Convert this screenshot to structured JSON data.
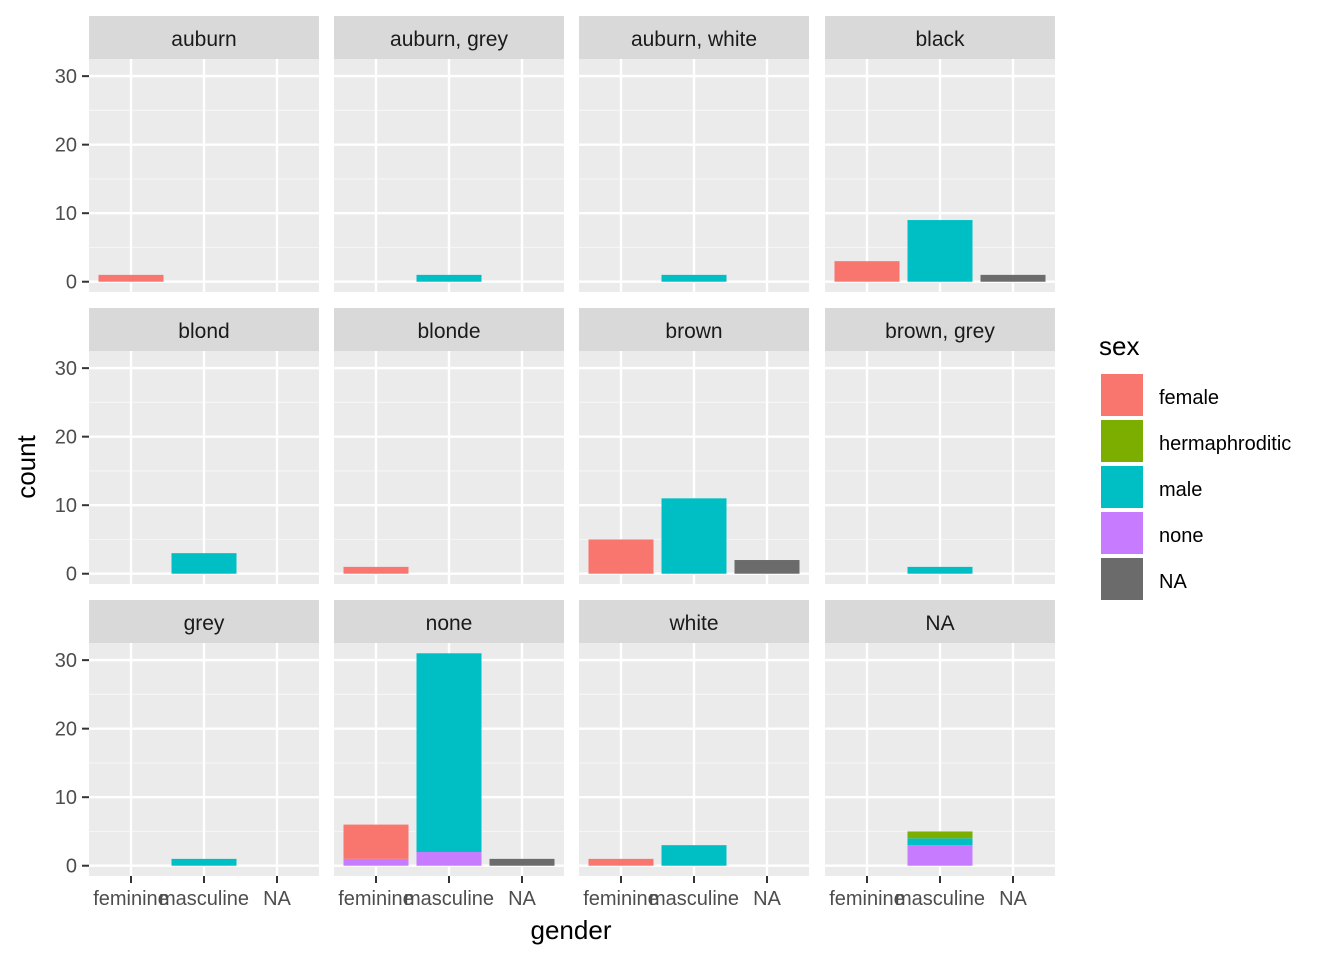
{
  "chart_data": {
    "type": "bar",
    "stacked": true,
    "xlabel": "gender",
    "ylabel": "count",
    "categories": [
      "feminine",
      "masculine",
      "NA"
    ],
    "y_ticks": [
      0,
      10,
      20,
      30
    ],
    "ylim": [
      -1.5,
      32.5
    ],
    "grid": true,
    "facet_layout": {
      "rows": 3,
      "cols": 4
    },
    "legend": {
      "title": "sex",
      "placement": "right",
      "items": [
        {
          "key": "female",
          "label": "female",
          "color": "#F8766D"
        },
        {
          "key": "hermaphroditic",
          "label": "hermaphroditic",
          "color": "#7CAE00"
        },
        {
          "key": "male",
          "label": "male",
          "color": "#00BFC4"
        },
        {
          "key": "none",
          "label": "none",
          "color": "#C77CFF"
        },
        {
          "key": "na",
          "label": "NA",
          "color": "#6B6B6B"
        }
      ]
    },
    "panels": [
      {
        "title": "auburn",
        "bars": [
          {
            "category": "feminine",
            "segments": [
              {
                "sex": "female",
                "value": 1
              }
            ]
          }
        ]
      },
      {
        "title": "auburn, grey",
        "bars": [
          {
            "category": "masculine",
            "segments": [
              {
                "sex": "male",
                "value": 1
              }
            ]
          }
        ]
      },
      {
        "title": "auburn, white",
        "bars": [
          {
            "category": "masculine",
            "segments": [
              {
                "sex": "male",
                "value": 1
              }
            ]
          }
        ]
      },
      {
        "title": "black",
        "bars": [
          {
            "category": "feminine",
            "segments": [
              {
                "sex": "female",
                "value": 3
              }
            ]
          },
          {
            "category": "masculine",
            "segments": [
              {
                "sex": "male",
                "value": 9
              }
            ]
          },
          {
            "category": "NA",
            "segments": [
              {
                "sex": "na",
                "value": 1
              }
            ]
          }
        ]
      },
      {
        "title": "blond",
        "bars": [
          {
            "category": "masculine",
            "segments": [
              {
                "sex": "male",
                "value": 3
              }
            ]
          }
        ]
      },
      {
        "title": "blonde",
        "bars": [
          {
            "category": "feminine",
            "segments": [
              {
                "sex": "female",
                "value": 1
              }
            ]
          }
        ]
      },
      {
        "title": "brown",
        "bars": [
          {
            "category": "feminine",
            "segments": [
              {
                "sex": "female",
                "value": 5
              }
            ]
          },
          {
            "category": "masculine",
            "segments": [
              {
                "sex": "male",
                "value": 11
              }
            ]
          },
          {
            "category": "NA",
            "segments": [
              {
                "sex": "na",
                "value": 2
              }
            ]
          }
        ]
      },
      {
        "title": "brown, grey",
        "bars": [
          {
            "category": "masculine",
            "segments": [
              {
                "sex": "male",
                "value": 1
              }
            ]
          }
        ]
      },
      {
        "title": "grey",
        "bars": [
          {
            "category": "masculine",
            "segments": [
              {
                "sex": "male",
                "value": 1
              }
            ]
          }
        ]
      },
      {
        "title": "none",
        "bars": [
          {
            "category": "feminine",
            "segments": [
              {
                "sex": "none",
                "value": 1
              },
              {
                "sex": "female",
                "value": 5
              }
            ]
          },
          {
            "category": "masculine",
            "segments": [
              {
                "sex": "none",
                "value": 2
              },
              {
                "sex": "male",
                "value": 29
              }
            ]
          },
          {
            "category": "NA",
            "segments": [
              {
                "sex": "na",
                "value": 1
              }
            ]
          }
        ]
      },
      {
        "title": "white",
        "bars": [
          {
            "category": "feminine",
            "segments": [
              {
                "sex": "female",
                "value": 1
              }
            ]
          },
          {
            "category": "masculine",
            "segments": [
              {
                "sex": "male",
                "value": 3
              }
            ]
          }
        ]
      },
      {
        "title": "NA",
        "bars": [
          {
            "category": "masculine",
            "segments": [
              {
                "sex": "none",
                "value": 3
              },
              {
                "sex": "male",
                "value": 1
              },
              {
                "sex": "hermaphroditic",
                "value": 1
              }
            ]
          }
        ]
      }
    ]
  }
}
